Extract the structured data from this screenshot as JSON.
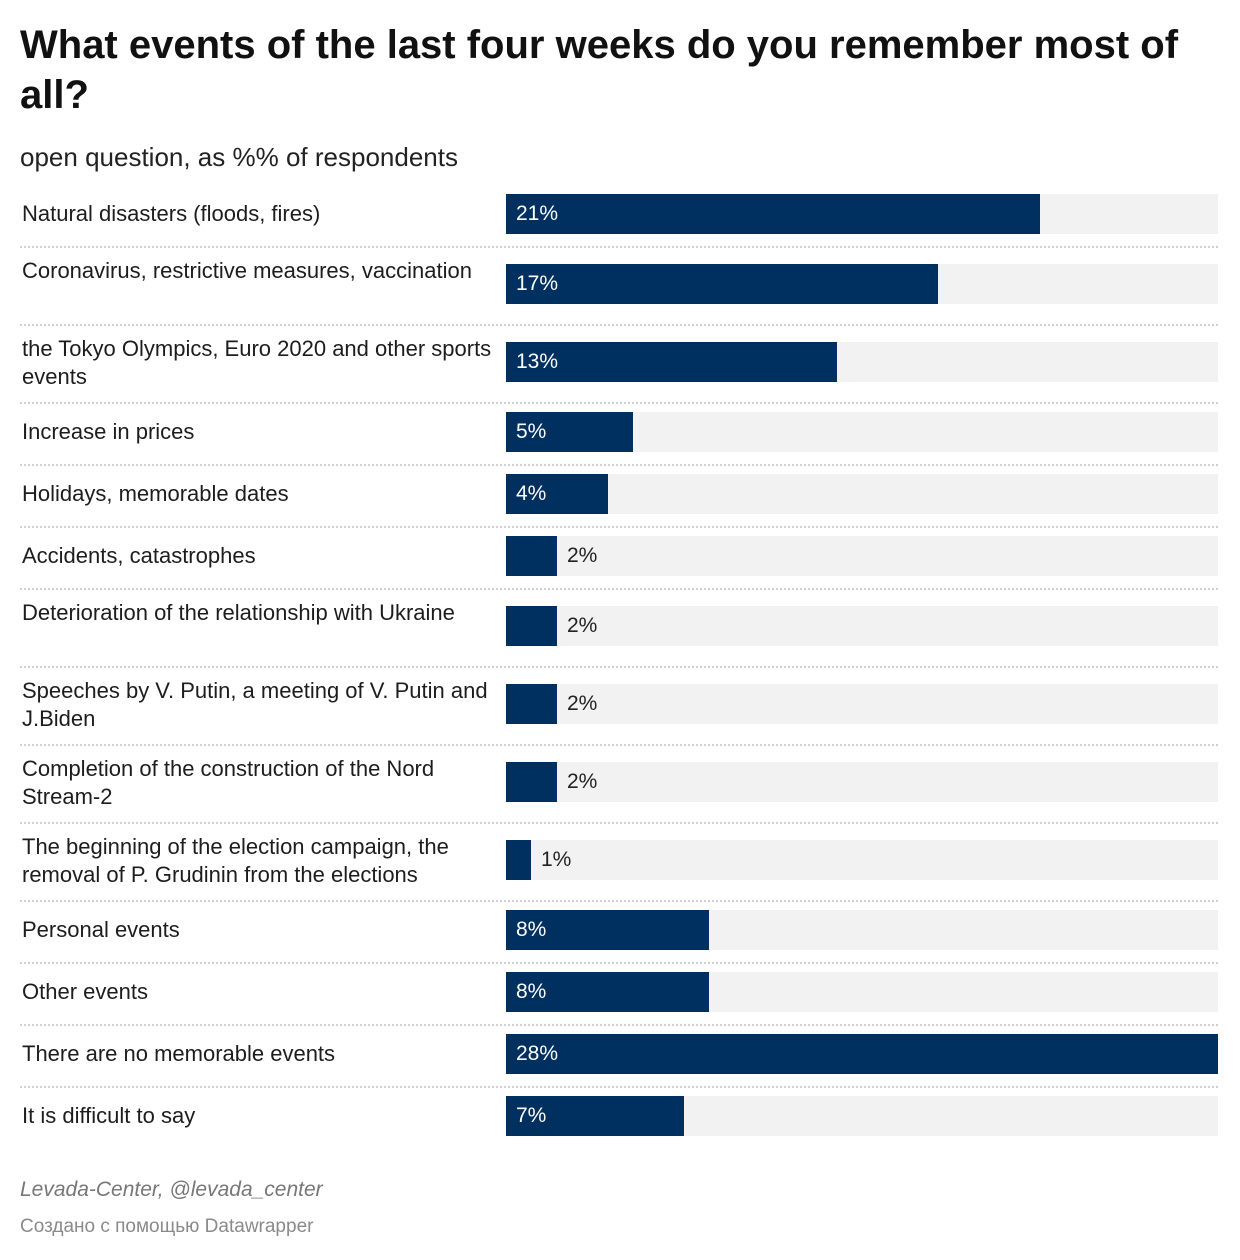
{
  "header": {
    "title": "What events of the last four weeks do you remember most of all?",
    "subtitle": "open question, as %% of respondents"
  },
  "footer": {
    "source": "Levada-Center, @levada_center",
    "credit": "Создано с помощью Datawrapper"
  },
  "colors": {
    "bar": "#003060",
    "track": "#f2f2f2",
    "separator": "#d0d0d0"
  },
  "chart_data": {
    "type": "bar",
    "orientation": "horizontal",
    "value_suffix": "%",
    "xlim": [
      0,
      28
    ],
    "grid": false,
    "categories": [
      "Natural disasters (floods, fires)",
      "Coronavirus, restrictive measures, vaccination",
      "the Tokyo Olympics, Euro 2020 and other sports events",
      "Increase in prices",
      "Holidays, memorable dates",
      "Accidents, catastrophes",
      "Deterioration of the relationship with Ukraine",
      "Speeches by V. Putin, a meeting of V. Putin and J.Biden",
      "Completion of the construction of the Nord Stream-2",
      "The beginning of the election campaign, the removal of P. Grudinin from the elections",
      "Personal events",
      "Other events",
      "There are no memorable events",
      "It is difficult to say"
    ],
    "values": [
      21,
      17,
      13,
      5,
      4,
      2,
      2,
      2,
      2,
      1,
      8,
      8,
      28,
      7
    ],
    "value_labels": [
      "21%",
      "17%",
      "13%",
      "5%",
      "4%",
      "2%",
      "2%",
      "2%",
      "2%",
      "1%",
      "8%",
      "8%",
      "28%",
      "7%"
    ]
  }
}
